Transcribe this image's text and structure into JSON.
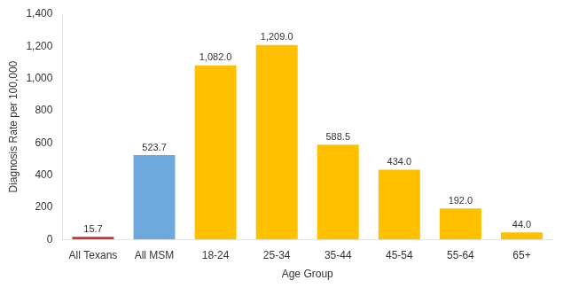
{
  "chart_data": {
    "type": "bar",
    "categories": [
      "All Texans",
      "All MSM",
      "18-24",
      "25-34",
      "35-44",
      "45-54",
      "55-64",
      "65+"
    ],
    "values": [
      15.7,
      523.7,
      1082.0,
      1209.0,
      588.5,
      434.0,
      192.0,
      44.0
    ],
    "value_labels": [
      "15.7",
      "523.7",
      "1,082.0",
      "1,209.0",
      "588.5",
      "434.0",
      "192.0",
      "44.0"
    ],
    "colors": [
      "#c0392b",
      "#6fa8dc",
      "#ffc000",
      "#ffc000",
      "#ffc000",
      "#ffc000",
      "#ffc000",
      "#ffc000"
    ],
    "xlabel": "Age Group",
    "ylabel": "Diagnosis Rate per 100,000",
    "ylim": [
      0,
      1400
    ],
    "yticks": [
      0,
      200,
      400,
      600,
      800,
      {
        "value": 1000,
        "label": "1,000"
      },
      {
        "value": 1200,
        "label": "1,200"
      },
      {
        "value": 1400,
        "label": "1,400"
      }
    ],
    "grid": false,
    "data_labels": true
  }
}
